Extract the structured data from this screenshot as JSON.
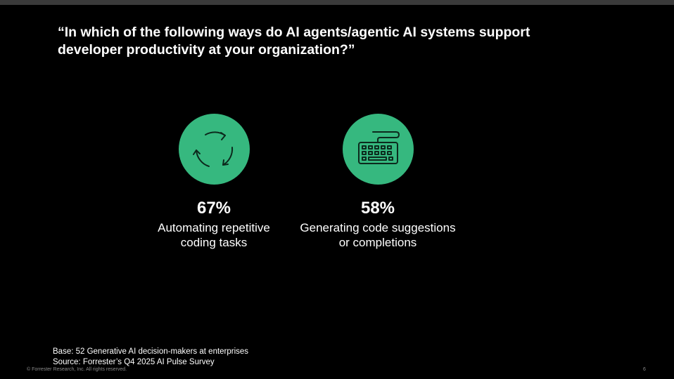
{
  "question": {
    "line1": "“In which of the following ways do AI agents/agentic AI systems support",
    "line2": "developer productivity at your organization?”"
  },
  "stats": [
    {
      "icon": "refresh-cycle-icon",
      "value": "67%",
      "label_line1": "Automating repetitive",
      "label_line2": "coding tasks"
    },
    {
      "icon": "keyboard-icon",
      "value": "58%",
      "label_line1": "Generating code suggestions",
      "label_line2": "or completions"
    }
  ],
  "footnote": {
    "base": "Base: 52 Generative AI decision-makers at enterprises",
    "source": "Source: Forrester’s Q4 2025 AI Pulse Survey"
  },
  "footer": {
    "copyright": "© Forrester Research, Inc. All rights reserved.",
    "page_number": "6"
  },
  "colors": {
    "background": "#000000",
    "accent_green": "#36b87f",
    "icon_stroke": "#0c2a1d",
    "text": "#ffffff"
  }
}
